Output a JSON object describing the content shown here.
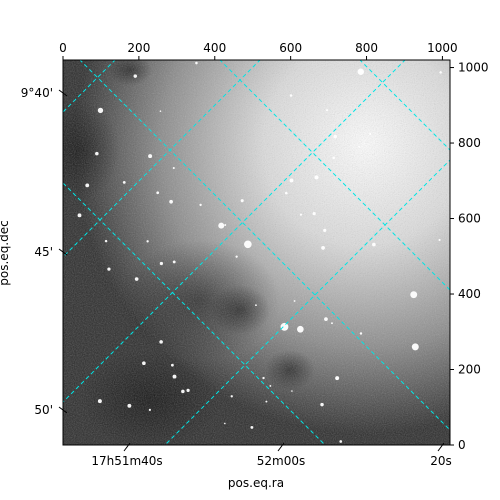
{
  "chart_data": {
    "type": "heatmap",
    "title": "",
    "xlabel": "pos.eq.ra",
    "ylabel": "pos.eq.dec",
    "pixel_axes": {
      "x_range": [
        0,
        1020
      ],
      "y_range": [
        0,
        1020
      ],
      "top_ticks": [
        "0",
        "200",
        "400",
        "600",
        "800",
        "1000"
      ],
      "top_tick_values": [
        0,
        200,
        400,
        600,
        800,
        1000
      ],
      "right_ticks": [
        "0",
        "200",
        "400",
        "600",
        "800",
        "1000"
      ],
      "right_tick_values": [
        0,
        200,
        400,
        600,
        800,
        1000
      ]
    },
    "world_axes": {
      "ra_ticks": [
        "17h51m40s",
        "52m00s",
        "20s"
      ],
      "dec_ticks": [
        "9°40'",
        "45'",
        "50'"
      ]
    },
    "grid": true,
    "grid_color": "#00e5e5",
    "colormap": "grayscale"
  }
}
